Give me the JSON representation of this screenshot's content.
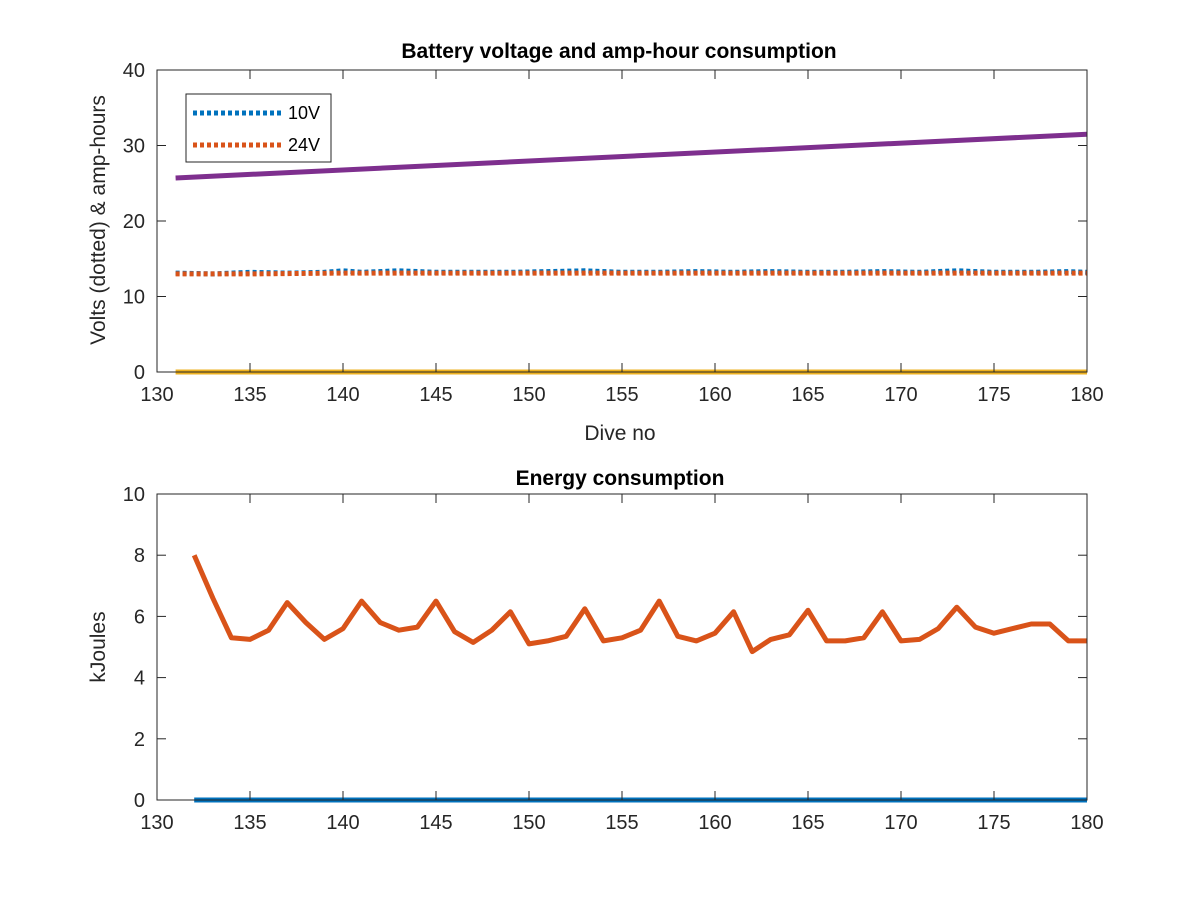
{
  "chart_data": [
    {
      "type": "line",
      "title": "Battery voltage and amp-hour consumption",
      "xlabel": "Dive no",
      "ylabel": "Volts (dotted) & amp-hours",
      "xlim": [
        130,
        180
      ],
      "ylim": [
        0,
        40
      ],
      "xticks": [
        130,
        135,
        140,
        145,
        150,
        155,
        160,
        165,
        170,
        175,
        180
      ],
      "yticks": [
        0,
        10,
        20,
        30,
        40
      ],
      "grid": false,
      "legend_position": "top-left",
      "series": [
        {
          "name": "10V",
          "style": "dotted",
          "color": "#0072BD",
          "x": [
            131,
            133,
            135,
            137,
            139,
            140,
            141,
            143,
            145,
            147,
            149,
            151,
            153,
            155,
            157,
            159,
            161,
            163,
            165,
            167,
            169,
            171,
            173,
            175,
            177,
            179,
            180
          ],
          "y": [
            13.1,
            13.0,
            13.2,
            13.1,
            13.2,
            13.4,
            13.2,
            13.4,
            13.2,
            13.2,
            13.2,
            13.3,
            13.4,
            13.2,
            13.2,
            13.3,
            13.2,
            13.3,
            13.2,
            13.2,
            13.3,
            13.2,
            13.4,
            13.2,
            13.2,
            13.3,
            13.2
          ]
        },
        {
          "name": "24V",
          "style": "dotted",
          "color": "#D95319",
          "x": [
            131,
            135,
            140,
            145,
            150,
            155,
            160,
            165,
            170,
            175,
            180
          ],
          "y": [
            13.0,
            13.0,
            13.1,
            13.1,
            13.1,
            13.1,
            13.1,
            13.1,
            13.1,
            13.1,
            13.1
          ]
        },
        {
          "style": "solid",
          "color": "#7E2F8E",
          "x": [
            131,
            180
          ],
          "y": [
            25.7,
            31.5
          ]
        },
        {
          "style": "solid",
          "color": "#EDB120",
          "x": [
            131,
            180
          ],
          "y": [
            0,
            0
          ]
        }
      ]
    },
    {
      "type": "line",
      "title": "Energy consumption",
      "xlabel": "",
      "ylabel": "kJoules",
      "xlim": [
        130,
        180
      ],
      "ylim": [
        0,
        10
      ],
      "xticks": [
        130,
        135,
        140,
        145,
        150,
        155,
        160,
        165,
        170,
        175,
        180
      ],
      "yticks": [
        0,
        2,
        4,
        6,
        8,
        10
      ],
      "grid": false,
      "series": [
        {
          "style": "solid",
          "color": "#0072BD",
          "x": [
            132,
            180
          ],
          "y": [
            0,
            0
          ]
        },
        {
          "style": "solid",
          "color": "#D95319",
          "x": [
            132,
            133,
            134,
            135,
            136,
            137,
            138,
            139,
            140,
            141,
            142,
            143,
            144,
            145,
            146,
            147,
            148,
            149,
            150,
            151,
            152,
            153,
            154,
            155,
            156,
            157,
            158,
            159,
            160,
            161,
            162,
            163,
            164,
            165,
            166,
            167,
            168,
            169,
            170,
            171,
            172,
            173,
            174,
            175,
            176,
            177,
            178,
            179,
            180
          ],
          "y": [
            8.0,
            6.6,
            5.3,
            5.25,
            5.55,
            6.45,
            5.8,
            5.25,
            5.6,
            6.5,
            5.8,
            5.55,
            5.65,
            6.5,
            5.5,
            5.15,
            5.55,
            6.15,
            5.1,
            5.2,
            5.35,
            6.25,
            5.2,
            5.3,
            5.55,
            6.5,
            5.35,
            5.2,
            5.45,
            6.15,
            4.85,
            5.25,
            5.4,
            6.2,
            5.2,
            5.2,
            5.3,
            6.15,
            5.2,
            5.25,
            5.6,
            6.3,
            5.65,
            5.45,
            5.6,
            5.75,
            5.75,
            5.2,
            5.2
          ]
        }
      ]
    }
  ]
}
